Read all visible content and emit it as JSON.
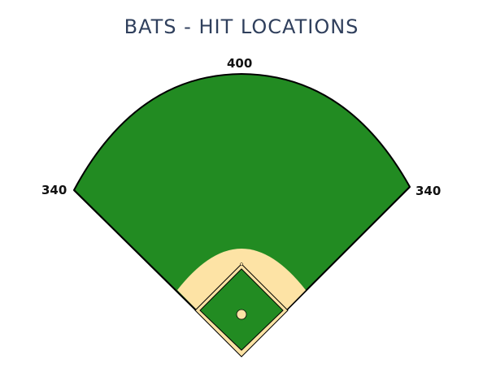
{
  "title": "BATS - HIT LOCATIONS",
  "distances": {
    "center": "400",
    "left": "340",
    "right": "340"
  },
  "colors": {
    "title": "#2f3f5c",
    "grass": "#228b22",
    "infield_dirt": "#fde3a5",
    "outline": "#000000",
    "background": "#ffffff"
  }
}
